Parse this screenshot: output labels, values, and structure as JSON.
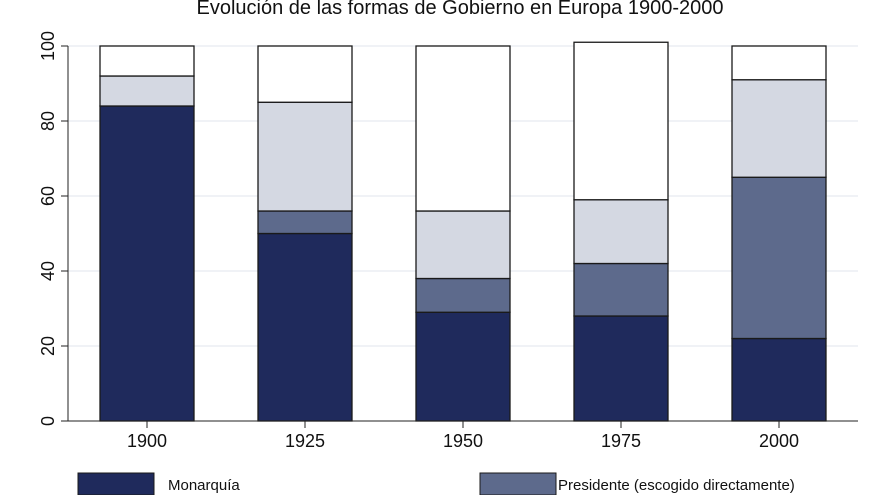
{
  "chart_data": {
    "type": "bar",
    "stacked": true,
    "title": "Evolución de las formas de Gobierno en Europa 1900-2000",
    "categories": [
      "1900",
      "1925",
      "1950",
      "1975",
      "2000"
    ],
    "ylim": [
      0,
      100
    ],
    "yticks": [
      0,
      20,
      40,
      60,
      80,
      100
    ],
    "grid": true,
    "legend_position": "bottom",
    "series": [
      {
        "name": "Monarquía",
        "color": "#1f2a5c",
        "values": [
          84,
          50,
          29,
          28,
          22
        ]
      },
      {
        "name": "Presidente (escogido directamente)",
        "color": "#5d6a8c",
        "values": [
          0,
          6,
          9,
          14,
          43
        ]
      },
      {
        "name": "",
        "color": "#d4d8e2",
        "values": [
          8,
          29,
          18,
          17,
          26
        ]
      },
      {
        "name": "",
        "color": "#ffffff",
        "values": [
          8,
          15,
          44,
          42,
          9
        ]
      }
    ]
  }
}
